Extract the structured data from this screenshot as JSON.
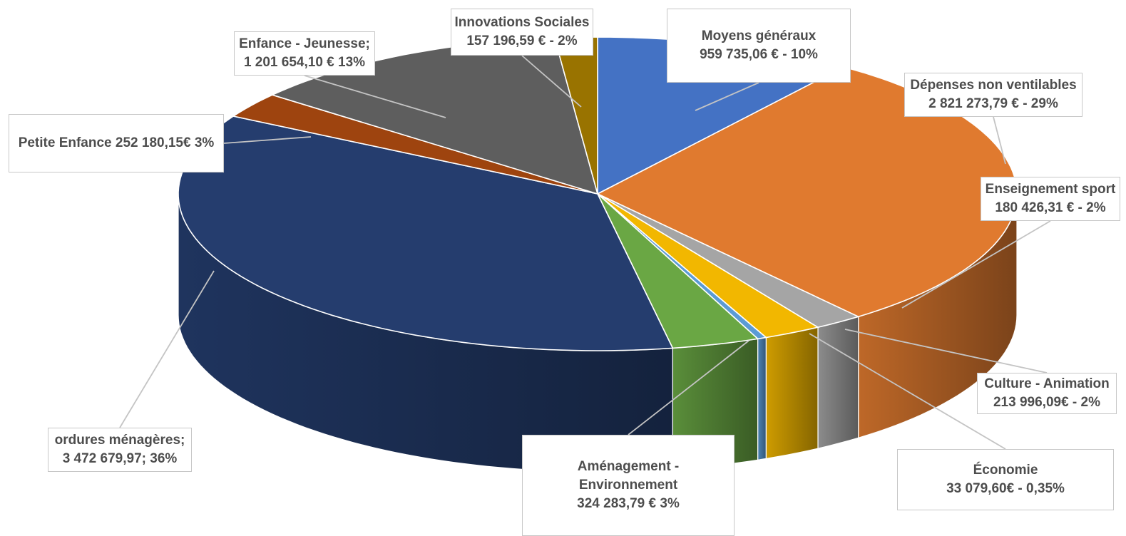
{
  "chart_data": {
    "type": "pie",
    "style": "3d-exploded-slice",
    "slices": [
      {
        "category": "Moyens généraux",
        "value": 959735.06,
        "percent": 10,
        "color": "#4472c4",
        "label_lines": [
          "Moyens généraux",
          "959 735,06 € -  10%"
        ]
      },
      {
        "category": "Dépenses non ventilables",
        "value": 2821273.79,
        "percent": 29,
        "color": "#e07a2f",
        "label_lines": [
          "Dépenses non ventilables",
          "2 821 273,79 € - 29%"
        ]
      },
      {
        "category": "Enseignement sport",
        "value": 180426.31,
        "percent": 2,
        "color": "#a5a5a5",
        "label_lines": [
          "Enseignement sport",
          "180 426,31 € -  2%"
        ]
      },
      {
        "category": "Culture - Animation",
        "value": 213996.09,
        "percent": 2,
        "color": "#f2b700",
        "label_lines": [
          "Culture - Animation",
          "213 996,09€ - 2%"
        ]
      },
      {
        "category": "Économie",
        "value": 33079.6,
        "percent": 0.35,
        "color": "#5b9bd5",
        "label_lines": [
          "Économie",
          "33 079,60€ - 0,35%"
        ]
      },
      {
        "category": "Aménagement - Environnement",
        "value": 324283.79,
        "percent": 3,
        "color": "#6aa744",
        "label_lines": [
          "Aménagement -",
          "Environnement",
          "324 283,79 €  3%"
        ]
      },
      {
        "category": "ordures ménagères",
        "value": 3472679.97,
        "percent": 36,
        "color": "#253d6e",
        "label_lines": [
          "ordures ménagères;",
          "3 472 679,97; 36%"
        ]
      },
      {
        "category": "Petite Enfance",
        "value": 252180.15,
        "percent": 3,
        "color": "#9e440f",
        "label_lines": [
          "Petite Enfance 252 180,15€ 3%"
        ]
      },
      {
        "category": "Enfance - Jeunesse",
        "value": 1201654.1,
        "percent": 13,
        "color": "#5e5e5e",
        "label_lines": [
          "Enfance - Jeunesse;",
          "1 201 654,10 € 13%"
        ]
      },
      {
        "category": "Innovations Sociales",
        "value": 157196.59,
        "percent": 2,
        "color": "#997300",
        "label_lines": [
          "Innovations Sociales",
          "157 196,59 € -  2%"
        ]
      }
    ],
    "legend": "none",
    "data_labels": "callouts-with-leader-lines"
  }
}
